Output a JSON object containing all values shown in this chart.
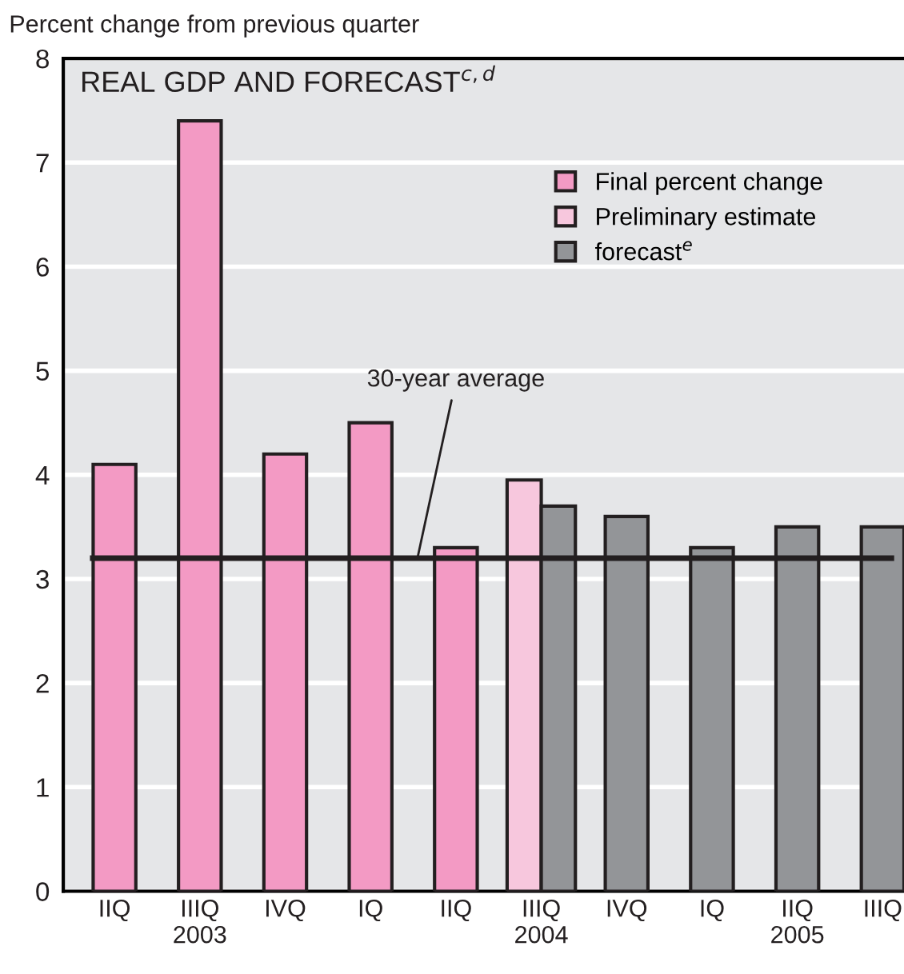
{
  "chart_data": {
    "type": "bar",
    "title": "REAL GDP AND FORECAST$^{c,d}$",
    "ylabel": "Percent change from previous quarter",
    "categories": [
      "IIQ",
      "IIIQ\n2003",
      "IVQ",
      "IQ",
      "IIQ",
      "IIIQ\n2004",
      "IVQ",
      "IQ",
      "IIQ\n2005",
      "IIIQ"
    ],
    "series": [
      {
        "name": "Final percent change",
        "color": "#f39ac4",
        "values": [
          4.1,
          7.4,
          4.2,
          4.5,
          3.3,
          null,
          null,
          null,
          null,
          null
        ]
      },
      {
        "name": "Preliminary estimate",
        "color": "#f7c7dd",
        "values": [
          null,
          null,
          null,
          null,
          null,
          3.95,
          null,
          null,
          null,
          null
        ]
      },
      {
        "name": "forecast$^{e}$",
        "color": "#939598",
        "values": [
          null,
          null,
          null,
          null,
          null,
          3.7,
          3.6,
          3.3,
          3.5,
          3.5
        ]
      }
    ],
    "ylim": [
      0,
      8
    ],
    "yticks": [
      0,
      1,
      2,
      3,
      4,
      5,
      6,
      7,
      8
    ],
    "ref_lines": [
      {
        "axis": "y",
        "value": 3.2,
        "label": "30-year average",
        "color": "#231f20"
      }
    ],
    "grid": "y",
    "legend": "top right"
  }
}
